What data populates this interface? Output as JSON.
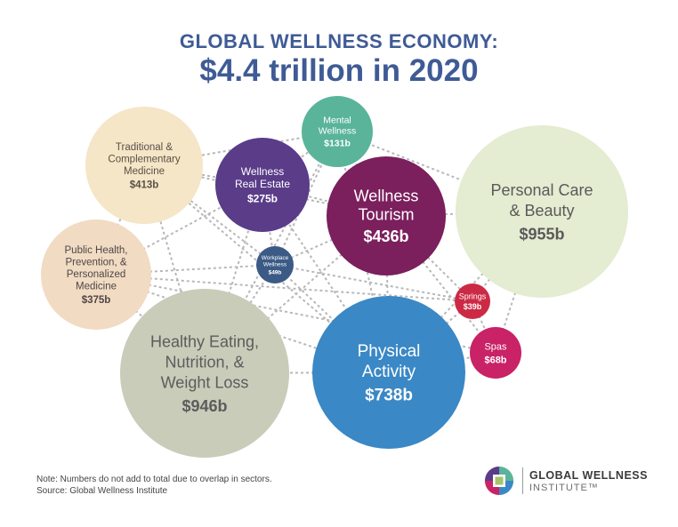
{
  "header": {
    "title_line1": "GLOBAL WELLNESS ECONOMY:",
    "title_line2": "$4.4 trillion in 2020"
  },
  "colors": {
    "title": "#3f5b96",
    "connector": "#b8b8b8"
  },
  "chart_data": {
    "type": "bubble",
    "title": "GLOBAL WELLNESS ECONOMY: $4.4 trillion in 2020",
    "unit": "US$ billions",
    "sectors": [
      {
        "id": "traditional",
        "label_lines": [
          "Traditional &",
          "Complementary",
          "Medicine"
        ],
        "value_label": "$413b",
        "value": 413,
        "color": "#f4e6c6",
        "text_color": "#5b5048"
      },
      {
        "id": "real-estate",
        "label_lines": [
          "Wellness",
          "Real Estate"
        ],
        "value_label": "$275b",
        "value": 275,
        "color": "#5a3c89",
        "text_color": "#ffffff"
      },
      {
        "id": "mental",
        "label_lines": [
          "Mental",
          "Wellness"
        ],
        "value_label": "$131b",
        "value": 131,
        "color": "#5ab49a",
        "text_color": "#ffffff"
      },
      {
        "id": "tourism",
        "label_lines": [
          "Wellness",
          "Tourism"
        ],
        "value_label": "$436b",
        "value": 436,
        "color": "#7b1f5d",
        "text_color": "#ffffff"
      },
      {
        "id": "personal-care",
        "label_lines": [
          "Personal Care",
          "& Beauty"
        ],
        "value_label": "$955b",
        "value": 955,
        "color": "#e4ecd1",
        "text_color": "#5a5a5a"
      },
      {
        "id": "public-health",
        "label_lines": [
          "Public Health,",
          "Prevention, &",
          "Personalized",
          "Medicine"
        ],
        "value_label": "$375b",
        "value": 375,
        "color": "#f1dbc3",
        "text_color": "#4e4646"
      },
      {
        "id": "workplace",
        "label_lines": [
          "Workplace",
          "Wellness"
        ],
        "value_label": "$49b",
        "value": 49,
        "color": "#3b5a86",
        "text_color": "#ffffff"
      },
      {
        "id": "springs",
        "label_lines": [
          "Springs"
        ],
        "value_label": "$39b",
        "value": 39,
        "color": "#cc2a44",
        "text_color": "#ffffff"
      },
      {
        "id": "spas",
        "label_lines": [
          "Spas"
        ],
        "value_label": "$68b",
        "value": 68,
        "color": "#c92266",
        "text_color": "#ffffff"
      },
      {
        "id": "healthy-eating",
        "label_lines": [
          "Healthy Eating,",
          "Nutrition, &",
          "Weight Loss"
        ],
        "value_label": "$946b",
        "value": 946,
        "color": "#c8ccb9",
        "text_color": "#5c5c5c"
      },
      {
        "id": "physical",
        "label_lines": [
          "Physical",
          "Activity"
        ],
        "value_label": "$738b",
        "value": 738,
        "color": "#3a88c5",
        "text_color": "#ffffff"
      }
    ],
    "connections": [
      [
        "traditional",
        "mental"
      ],
      [
        "traditional",
        "real-estate"
      ],
      [
        "traditional",
        "tourism"
      ],
      [
        "traditional",
        "public-health"
      ],
      [
        "traditional",
        "workplace"
      ],
      [
        "traditional",
        "healthy-eating"
      ],
      [
        "traditional",
        "physical"
      ],
      [
        "real-estate",
        "mental"
      ],
      [
        "real-estate",
        "tourism"
      ],
      [
        "real-estate",
        "public-health"
      ],
      [
        "real-estate",
        "workplace"
      ],
      [
        "real-estate",
        "healthy-eating"
      ],
      [
        "real-estate",
        "physical"
      ],
      [
        "mental",
        "tourism"
      ],
      [
        "mental",
        "personal-care"
      ],
      [
        "mental",
        "workplace"
      ],
      [
        "mental",
        "healthy-eating"
      ],
      [
        "mental",
        "physical"
      ],
      [
        "tourism",
        "personal-care"
      ],
      [
        "tourism",
        "springs"
      ],
      [
        "tourism",
        "spas"
      ],
      [
        "tourism",
        "physical"
      ],
      [
        "tourism",
        "healthy-eating"
      ],
      [
        "tourism",
        "workplace"
      ],
      [
        "personal-care",
        "springs"
      ],
      [
        "personal-care",
        "spas"
      ],
      [
        "personal-care",
        "physical"
      ],
      [
        "public-health",
        "workplace"
      ],
      [
        "public-health",
        "springs"
      ],
      [
        "public-health",
        "spas"
      ],
      [
        "public-health",
        "healthy-eating"
      ],
      [
        "public-health",
        "physical"
      ],
      [
        "workplace",
        "healthy-eating"
      ],
      [
        "workplace",
        "physical"
      ],
      [
        "workplace",
        "springs"
      ],
      [
        "springs",
        "spas"
      ],
      [
        "springs",
        "physical"
      ],
      [
        "spas",
        "physical"
      ],
      [
        "healthy-eating",
        "physical"
      ]
    ]
  },
  "footer": {
    "note": "Note: Numbers do not add to total due to overlap in sectors.",
    "source": "Source: Global Wellness Institute",
    "logo_name": "GLOBAL WELLNESS",
    "logo_sub": "INSTITUTE™"
  }
}
